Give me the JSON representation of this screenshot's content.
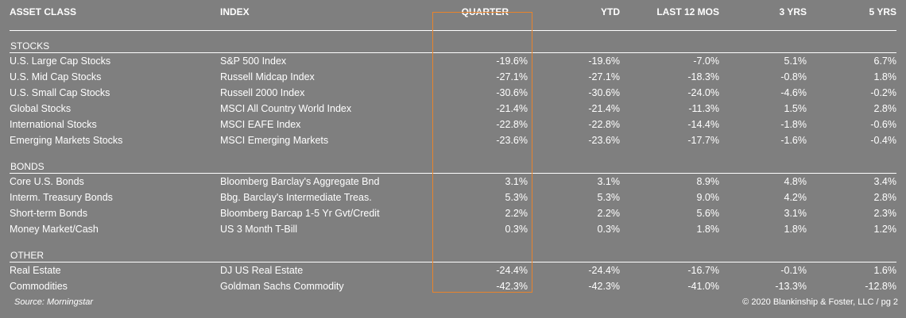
{
  "headers": {
    "asset_class": "ASSET CLASS",
    "index": "INDEX",
    "quarter": "QUARTER",
    "ytd": "YTD",
    "last12": "LAST 12 MOS",
    "y3": "3 YRS",
    "y5": "5 YRS"
  },
  "sections": [
    {
      "title": "STOCKS",
      "rows": [
        {
          "asset": "U.S. Large Cap Stocks",
          "index": "S&P 500 Index",
          "quarter": "-19.6%",
          "ytd": "-19.6%",
          "last12": "-7.0%",
          "y3": "5.1%",
          "y5": "6.7%"
        },
        {
          "asset": "U.S. Mid Cap Stocks",
          "index": "Russell Midcap Index",
          "quarter": "-27.1%",
          "ytd": "-27.1%",
          "last12": "-18.3%",
          "y3": "-0.8%",
          "y5": "1.8%"
        },
        {
          "asset": "U.S. Small Cap Stocks",
          "index": "Russell 2000 Index",
          "quarter": "-30.6%",
          "ytd": "-30.6%",
          "last12": "-24.0%",
          "y3": "-4.6%",
          "y5": "-0.2%"
        },
        {
          "asset": "Global Stocks",
          "index": "MSCI All Country World Index",
          "quarter": "-21.4%",
          "ytd": "-21.4%",
          "last12": "-11.3%",
          "y3": "1.5%",
          "y5": "2.8%"
        },
        {
          "asset": "International Stocks",
          "index": "MSCI EAFE Index",
          "quarter": "-22.8%",
          "ytd": "-22.8%",
          "last12": "-14.4%",
          "y3": "-1.8%",
          "y5": "-0.6%"
        },
        {
          "asset": "Emerging Markets Stocks",
          "index": "MSCI Emerging Markets",
          "quarter": "-23.6%",
          "ytd": "-23.6%",
          "last12": "-17.7%",
          "y3": "-1.6%",
          "y5": "-0.4%"
        }
      ]
    },
    {
      "title": "BONDS",
      "rows": [
        {
          "asset": "Core U.S. Bonds",
          "index": "Bloomberg Barclay's Aggregate Bnd",
          "quarter": "3.1%",
          "ytd": "3.1%",
          "last12": "8.9%",
          "y3": "4.8%",
          "y5": "3.4%"
        },
        {
          "asset": "Interm. Treasury Bonds",
          "index": "Bbg. Barclay's Intermediate Treas.",
          "quarter": "5.3%",
          "ytd": "5.3%",
          "last12": "9.0%",
          "y3": "4.2%",
          "y5": "2.8%"
        },
        {
          "asset": "Short-term Bonds",
          "index": "Bloomberg Barcap 1-5 Yr Gvt/Credit",
          "quarter": "2.2%",
          "ytd": "2.2%",
          "last12": "5.6%",
          "y3": "3.1%",
          "y5": "2.3%"
        },
        {
          "asset": "Money Market/Cash",
          "index": "US 3 Month T-Bill",
          "quarter": "0.3%",
          "ytd": "0.3%",
          "last12": "1.8%",
          "y3": "1.8%",
          "y5": "1.2%"
        }
      ]
    },
    {
      "title": "OTHER",
      "rows": [
        {
          "asset": "Real Estate",
          "index": "DJ US Real Estate",
          "quarter": "-24.4%",
          "ytd": "-24.4%",
          "last12": "-16.7%",
          "y3": "-0.1%",
          "y5": "1.6%"
        },
        {
          "asset": "Commodities",
          "index": "Goldman Sachs Commodity",
          "quarter": "-42.3%",
          "ytd": "-42.3%",
          "last12": "-41.0%",
          "y3": "-13.3%",
          "y5": "-12.8%"
        }
      ]
    }
  ],
  "footer": {
    "source": "Source: Morningstar",
    "copyright": "© 2020 Blankinship & Foster, LLC / pg 2"
  },
  "colors": {
    "background": "#7f7f7f",
    "highlight": "#e8832c",
    "text": "#ffffff"
  }
}
